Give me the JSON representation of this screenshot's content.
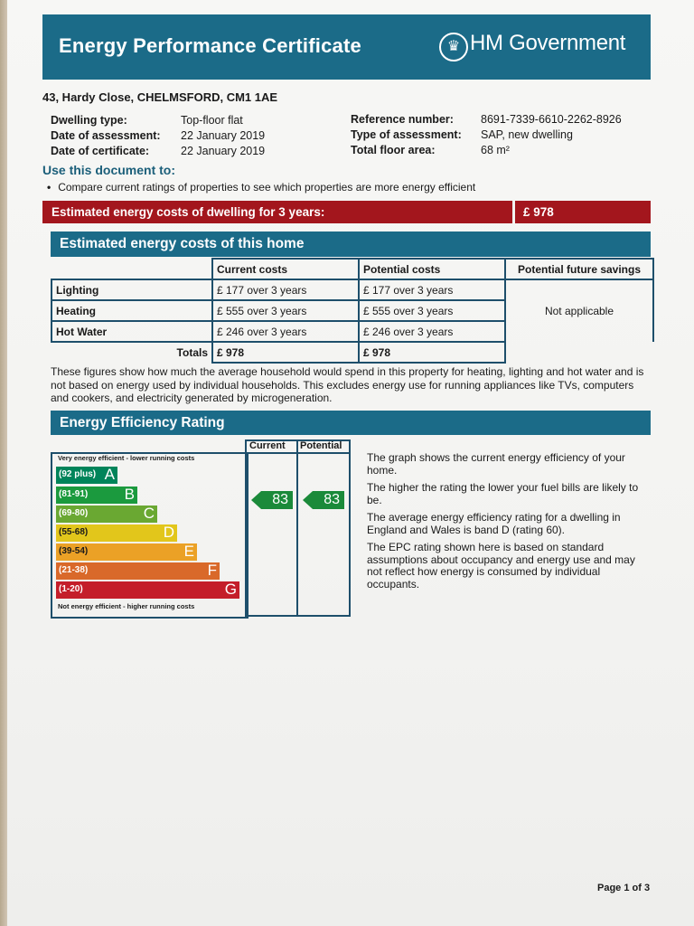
{
  "header": {
    "title": "Energy Performance Certificate",
    "gov": "HM Government",
    "crest_icon": "crest-icon"
  },
  "property": {
    "address": "43, Hardy Close, CHELMSFORD, CM1 1AE"
  },
  "details_left": [
    {
      "label": "Dwelling type:",
      "value": "Top-floor flat"
    },
    {
      "label": "Date of assessment:",
      "value": "22  January  2019"
    },
    {
      "label": "Date of certificate:",
      "value": "22  January  2019"
    }
  ],
  "details_right": [
    {
      "label": "Reference number:",
      "value": "8691-7339-6610-2262-8926"
    },
    {
      "label": "Type of assessment:",
      "value": "SAP, new dwelling"
    },
    {
      "label": "Total floor area:",
      "value": "68 m²"
    }
  ],
  "use": {
    "heading": "Use this document to:",
    "bullets": [
      "Compare current ratings of properties to see which properties are more energy efficient"
    ]
  },
  "estimated_total": {
    "label": "Estimated energy costs of dwelling for 3 years:",
    "value": "£ 978"
  },
  "costs": {
    "heading": "Estimated energy costs of this home",
    "columns": [
      "Current costs",
      "Potential costs",
      "Potential future savings"
    ],
    "rows": [
      {
        "label": "Lighting",
        "current": "£ 177 over 3 years",
        "potential": "£ 177 over 3 years"
      },
      {
        "label": "Heating",
        "current": "£ 555 over 3 years",
        "potential": "£ 555 over 3 years"
      },
      {
        "label": "Hot Water",
        "current": "£ 246 over 3 years",
        "potential": "£ 246 over 3 years"
      }
    ],
    "savings": "Not applicable",
    "totals": {
      "label": "Totals",
      "current": "£ 978",
      "potential": "£ 978"
    },
    "note": "These figures show how much the average household would spend in this property for heating, lighting and hot water and is not based on energy used by individual households. This excludes energy use for running appliances like TVs, computers and cookers, and electricity generated by microgeneration."
  },
  "rating": {
    "heading": "Energy Efficiency Rating",
    "col_current": "Current",
    "col_potential": "Potential",
    "top_label": "Very energy efficient - lower running costs",
    "bottom_label": "Not energy efficient - higher running costs",
    "bands": [
      {
        "range": "(92 plus)",
        "letter": "A",
        "color": "#00845a"
      },
      {
        "range": "(81-91)",
        "letter": "B",
        "color": "#1b9a3e"
      },
      {
        "range": "(69-80)",
        "letter": "C",
        "color": "#6aa832"
      },
      {
        "range": "(55-68)",
        "letter": "D",
        "color": "#e2c61b"
      },
      {
        "range": "(39-54)",
        "letter": "E",
        "color": "#eba126"
      },
      {
        "range": "(21-38)",
        "letter": "F",
        "color": "#d9692a"
      },
      {
        "range": "(1-20)",
        "letter": "G",
        "color": "#c41e2a"
      }
    ],
    "current": "83",
    "potential": "83",
    "arrow_color": "#1b8a3a",
    "paragraphs": [
      "The graph shows the current energy efficiency of your home.",
      "The higher the rating the lower your fuel bills are likely to be.",
      "The average energy efficiency rating for a dwelling in England and Wales is band D (rating 60).",
      "The EPC rating shown here is based on standard assumptions about occupancy and energy use and may not reflect how energy is consumed by individual occupants."
    ]
  },
  "footer": {
    "page": "Page 1 of 3"
  }
}
